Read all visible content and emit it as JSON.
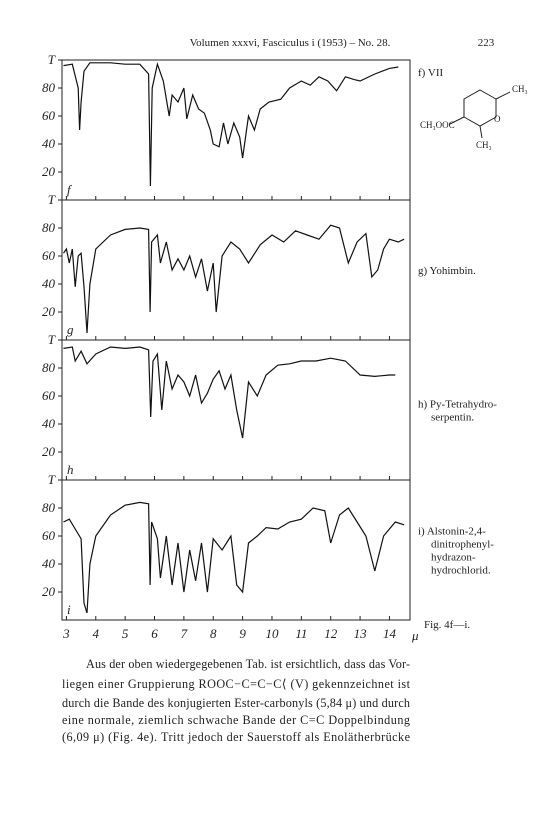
{
  "header": {
    "running_title": "Volumen xxxvi, Fasciculus i (1953) – No. 28.",
    "page_number": "223"
  },
  "chart_data": [
    {
      "type": "line",
      "panel_label": "f",
      "label_lines": [
        "f) VII"
      ],
      "x": [
        2.9,
        3.2,
        3.4,
        3.45,
        3.5,
        3.6,
        3.8,
        4.5,
        5.0,
        5.5,
        5.8,
        5.86,
        5.92,
        6.1,
        6.3,
        6.5,
        6.6,
        6.8,
        7.0,
        7.1,
        7.3,
        7.5,
        7.7,
        7.9,
        8.0,
        8.2,
        8.35,
        8.5,
        8.7,
        8.9,
        9.0,
        9.2,
        9.4,
        9.6,
        9.9,
        10.3,
        10.6,
        11.0,
        11.3,
        11.6,
        11.9,
        12.2,
        12.5,
        12.8,
        13.0,
        13.5,
        14.0,
        14.3
      ],
      "values": [
        96,
        97,
        80,
        50,
        70,
        92,
        98,
        98,
        97,
        97,
        90,
        10,
        80,
        97,
        85,
        60,
        75,
        70,
        80,
        58,
        75,
        65,
        62,
        50,
        40,
        38,
        55,
        40,
        55,
        45,
        30,
        60,
        50,
        65,
        70,
        72,
        80,
        85,
        82,
        88,
        85,
        78,
        88,
        86,
        85,
        90,
        94,
        95
      ],
      "xlim": [
        2.85,
        14.7
      ],
      "ylim": [
        0,
        100
      ],
      "yticks": [
        {
          "value": 100,
          "label": "T"
        },
        80,
        60,
        40,
        20
      ]
    },
    {
      "type": "line",
      "panel_label": "g",
      "label_lines": [
        "g) Yohimbin."
      ],
      "x": [
        2.9,
        3.0,
        3.1,
        3.2,
        3.3,
        3.4,
        3.5,
        3.6,
        3.7,
        3.8,
        4.0,
        4.5,
        5.0,
        5.5,
        5.8,
        5.85,
        5.9,
        6.1,
        6.2,
        6.4,
        6.6,
        6.8,
        7.0,
        7.2,
        7.4,
        7.6,
        7.8,
        8.0,
        8.1,
        8.3,
        8.6,
        8.9,
        9.2,
        9.6,
        10.0,
        10.4,
        10.8,
        11.2,
        11.6,
        12.0,
        12.3,
        12.6,
        12.9,
        13.2,
        13.4,
        13.6,
        13.8,
        14.0,
        14.3,
        14.5
      ],
      "values": [
        62,
        65,
        55,
        65,
        38,
        60,
        62,
        38,
        5,
        40,
        65,
        75,
        79,
        80,
        79,
        20,
        70,
        75,
        55,
        70,
        50,
        58,
        50,
        60,
        45,
        58,
        35,
        55,
        20,
        60,
        70,
        65,
        55,
        68,
        75,
        70,
        78,
        75,
        72,
        82,
        80,
        55,
        70,
        76,
        45,
        50,
        65,
        72,
        70,
        72
      ],
      "xlim": [
        2.85,
        14.7
      ],
      "ylim": [
        0,
        100
      ],
      "yticks": [
        {
          "value": 100,
          "label": "T"
        },
        80,
        60,
        40,
        20
      ]
    },
    {
      "type": "line",
      "panel_label": "h",
      "label_lines": [
        "h) Py-Tetrahydro-",
        "serpentin."
      ],
      "x": [
        2.9,
        3.2,
        3.3,
        3.5,
        3.7,
        4.0,
        4.5,
        5.0,
        5.5,
        5.8,
        5.87,
        5.95,
        6.1,
        6.25,
        6.4,
        6.6,
        6.8,
        7.0,
        7.2,
        7.4,
        7.6,
        7.8,
        8.0,
        8.2,
        8.4,
        8.6,
        8.8,
        9.0,
        9.2,
        9.5,
        9.8,
        10.2,
        10.6,
        11.0,
        11.5,
        12.0,
        12.5,
        13.0,
        13.5,
        14.0,
        14.2
      ],
      "values": [
        94,
        95,
        85,
        92,
        83,
        90,
        95,
        94,
        95,
        93,
        45,
        85,
        90,
        50,
        85,
        65,
        75,
        70,
        60,
        75,
        55,
        62,
        72,
        78,
        65,
        75,
        50,
        30,
        70,
        60,
        75,
        82,
        83,
        85,
        85,
        87,
        85,
        75,
        74,
        75,
        75
      ],
      "xlim": [
        2.85,
        14.7
      ],
      "ylim": [
        0,
        100
      ],
      "yticks": [
        {
          "value": 100,
          "label": "T"
        },
        80,
        60,
        40,
        20
      ]
    },
    {
      "type": "line",
      "panel_label": "i",
      "label_lines": [
        "i) Alstonin-2,4-",
        "dinitrophenyl-",
        "hydrazon-",
        "hydrochlorid."
      ],
      "x": [
        2.9,
        3.1,
        3.3,
        3.5,
        3.6,
        3.7,
        3.8,
        4.0,
        4.5,
        5.0,
        5.5,
        5.8,
        5.85,
        5.9,
        6.1,
        6.2,
        6.4,
        6.6,
        6.8,
        7.0,
        7.2,
        7.4,
        7.6,
        7.8,
        8.0,
        8.3,
        8.6,
        8.8,
        9.0,
        9.2,
        9.5,
        9.8,
        10.2,
        10.6,
        11.0,
        11.4,
        11.8,
        12.0,
        12.3,
        12.6,
        12.9,
        13.2,
        13.5,
        13.8,
        14.2,
        14.5
      ],
      "values": [
        70,
        72,
        65,
        58,
        12,
        5,
        40,
        60,
        75,
        82,
        84,
        83,
        25,
        70,
        58,
        30,
        60,
        25,
        55,
        20,
        50,
        28,
        55,
        20,
        58,
        50,
        60,
        25,
        20,
        55,
        60,
        66,
        65,
        70,
        72,
        80,
        78,
        55,
        75,
        80,
        70,
        60,
        35,
        60,
        70,
        68
      ],
      "xlim": [
        2.85,
        14.7
      ],
      "ylim": [
        0,
        100
      ],
      "yticks": [
        {
          "value": 100,
          "label": "T"
        },
        80,
        60,
        40,
        20
      ],
      "xticks": [
        3,
        4,
        5,
        6,
        7,
        8,
        9,
        10,
        11,
        12,
        13,
        14
      ],
      "x_label": "μ"
    }
  ],
  "formula": {
    "groups": [
      "CH₃",
      "CH₃OOC",
      "O",
      "CH₃"
    ]
  },
  "figure_caption": "Fig. 4f—i.",
  "body": {
    "lines": [
      "Aus der oben wiedergegebenen Tab. ist ersichtlich, dass das Vor-",
      "liegen einer Gruppierung ROOC−C=C−C⟨ (V) gekennzeichnet ist",
      "durch die Bande des konjugierten Ester-carbonyls (5,84 μ) und durch",
      "eine normale, ziemlich schwache Bande der C=C Doppelbindung",
      "(6,09 μ) (Fig. 4e). Tritt jedoch der Sauerstoff als Enolätherbrücke"
    ]
  }
}
